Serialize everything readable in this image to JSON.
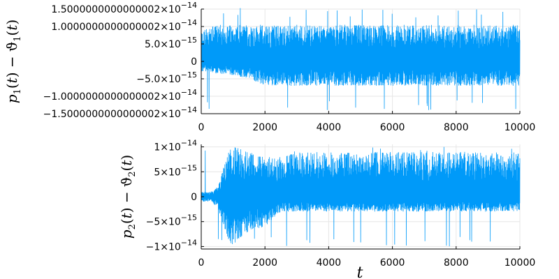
{
  "chart_data": [
    {
      "type": "line",
      "ylabel": "p_1(t) − ϑ_1(t)",
      "xlabel": "",
      "xlim": [
        0,
        10000
      ],
      "ylim": [
        -1.5e-14,
        1.5e-14
      ],
      "grid": true,
      "color": "#009af9",
      "x_ticks": [
        {
          "value": 0,
          "label": "0"
        },
        {
          "value": 2000,
          "label": "2000"
        },
        {
          "value": 4000,
          "label": "4000"
        },
        {
          "value": 6000,
          "label": "6000"
        },
        {
          "value": 8000,
          "label": "8000"
        },
        {
          "value": 10000,
          "label": "10000"
        }
      ],
      "y_ticks": [
        {
          "value": 1.5e-14,
          "mant": "1.5000000000000002",
          "exp": "−14"
        },
        {
          "value": 1e-14,
          "mant": "1.0000000000000002",
          "exp": "−14"
        },
        {
          "value": 5e-15,
          "mant": "5.0",
          "exp": "−15"
        },
        {
          "value": 0,
          "mant": "0",
          "exp": ""
        },
        {
          "value": -5e-15,
          "mant": "−5.0",
          "exp": "−15"
        },
        {
          "value": -1e-14,
          "mant": "−1.0000000000000002",
          "exp": "−14"
        },
        {
          "value": -1.5e-14,
          "mant": "−1.5000000000000002",
          "exp": "−14"
        }
      ],
      "envelope": {
        "t": [
          0,
          500,
          1000,
          1500,
          2000,
          3000,
          4000,
          5000,
          6000,
          7000,
          8000,
          9000,
          10000
        ],
        "upper": [
          9e-15,
          1.05e-14,
          1.05e-14,
          1.05e-14,
          1.05e-14,
          1.05e-14,
          1.05e-14,
          1.05e-14,
          1.05e-14,
          1.05e-14,
          1.05e-14,
          1.05e-14,
          1.05e-14
        ],
        "lower": [
          -3e-15,
          -3.5e-15,
          -4e-15,
          -5e-15,
          -7e-15,
          -7e-15,
          -7e-15,
          -7e-15,
          -7e-15,
          -7e-15,
          -7e-15,
          -7e-15,
          -7e-15
        ],
        "max_spike": 1.55e-14,
        "min_spike": -1.4e-14
      }
    },
    {
      "type": "line",
      "ylabel": "p_2(t) − ϑ_2(t)",
      "xlabel": "t",
      "xlim": [
        0,
        10000
      ],
      "ylim": [
        -1.05e-14,
        1.05e-14
      ],
      "grid": true,
      "color": "#009af9",
      "x_ticks": [
        {
          "value": 0,
          "label": "0"
        },
        {
          "value": 2000,
          "label": "2000"
        },
        {
          "value": 4000,
          "label": "4000"
        },
        {
          "value": 6000,
          "label": "6000"
        },
        {
          "value": 8000,
          "label": "8000"
        },
        {
          "value": 10000,
          "label": "10000"
        }
      ],
      "y_ticks": [
        {
          "value": 1e-14,
          "mant": "1×10",
          "exp": "−14"
        },
        {
          "value": 5e-15,
          "mant": "5×10",
          "exp": "−15"
        },
        {
          "value": 0,
          "mant": "0",
          "exp": ""
        },
        {
          "value": -5e-15,
          "mant": "−5×10",
          "exp": "−15"
        },
        {
          "value": -1e-14,
          "mant": "−1×10",
          "exp": "−14"
        }
      ],
      "envelope": {
        "t": [
          0,
          300,
          500,
          700,
          900,
          1100,
          1500,
          2000,
          2500,
          3000,
          4000,
          6000,
          8000,
          10000
        ],
        "upper": [
          1e-15,
          1e-15,
          2e-15,
          6e-15,
          1e-14,
          1e-14,
          9e-15,
          8e-15,
          8e-15,
          9e-15,
          9e-15,
          9e-15,
          9e-15,
          9e-15
        ],
        "lower": [
          -1e-15,
          -1e-15,
          -2e-15,
          -6e-15,
          -1e-14,
          -9e-15,
          -7e-15,
          -6e-15,
          -3e-15,
          -3e-15,
          -3e-15,
          -3e-15,
          -3e-15,
          -3e-15
        ],
        "max_spike": 1e-14,
        "min_spike": -1e-14
      }
    }
  ]
}
